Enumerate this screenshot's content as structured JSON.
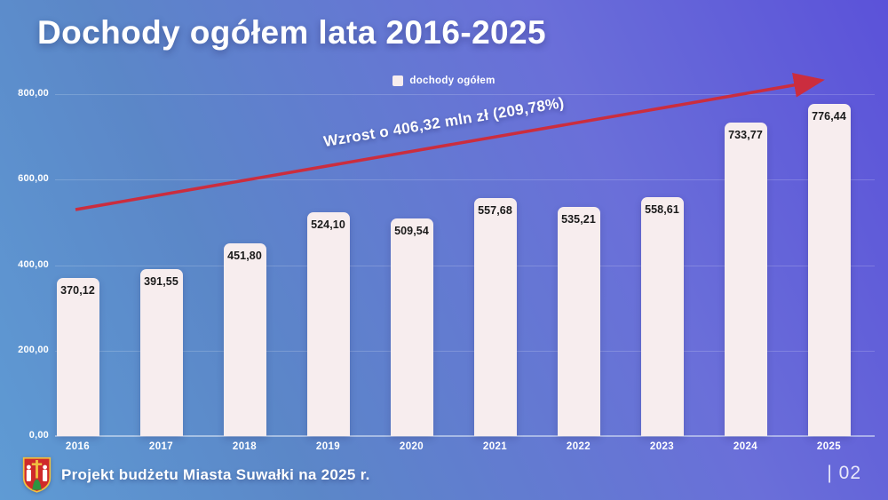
{
  "slide": {
    "title": "Dochody ogółem lata 2016-2025",
    "footer": "Projekt budżetu Miasta Suwałki na 2025 r.",
    "page_number": "| 02"
  },
  "legend": {
    "label": "dochody ogółem"
  },
  "annotation": {
    "text": "Wzrost o 406,32 mln zł (209,78%)"
  },
  "chart_data": {
    "type": "bar",
    "title": "Dochody ogółem lata 2016-2025",
    "series_name": "dochody ogółem",
    "categories": [
      "2016",
      "2017",
      "2018",
      "2019",
      "2020",
      "2021",
      "2022",
      "2023",
      "2024",
      "2025"
    ],
    "values": [
      370.12,
      391.55,
      451.8,
      524.1,
      509.54,
      557.68,
      535.21,
      558.61,
      733.77,
      776.44
    ],
    "value_labels": [
      "370,12",
      "391,55",
      "451,80",
      "524,10",
      "509,54",
      "557,68",
      "535,21",
      "558,61",
      "733,77",
      "776,44"
    ],
    "xlabel": "",
    "ylabel": "",
    "ylim": [
      0,
      800
    ],
    "yticks": [
      0,
      200,
      400,
      600,
      800
    ],
    "ytick_labels": [
      "0,00",
      "200,00",
      "400,00",
      "600,00",
      "800,00"
    ],
    "grid": true,
    "legend_position": "top-center",
    "annotation": "Wzrost o 406,32 mln zł (209,78%)"
  },
  "colors": {
    "bar": "#f7edee",
    "bar_label": "#1a1a1a",
    "arrow": "#cb2d3e",
    "bg_bottom_left": "#5f9bd4",
    "bg_top_right": "#5b52d9",
    "crest_red": "#cf2a2a",
    "crest_gold": "#f0c040",
    "crest_green": "#2e9440"
  }
}
